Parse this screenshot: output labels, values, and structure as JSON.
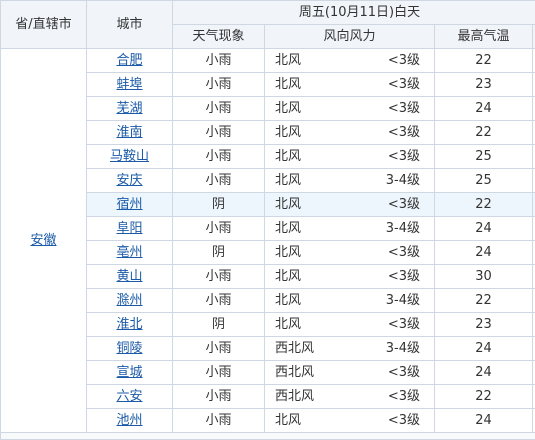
{
  "header": {
    "province_col": "省/直辖市",
    "city_col": "城市",
    "day_title": "周五(10月11日)白天",
    "weather_col": "天气现象",
    "wind_col": "风向风力",
    "temp_col": "最高气温"
  },
  "province": "安徽",
  "rows": [
    {
      "city": "合肥",
      "weather": "小雨",
      "wind_dir": "北风",
      "wind_force": "<3级",
      "temp": "22"
    },
    {
      "city": "蚌埠",
      "weather": "小雨",
      "wind_dir": "北风",
      "wind_force": "<3级",
      "temp": "23"
    },
    {
      "city": "芜湖",
      "weather": "小雨",
      "wind_dir": "北风",
      "wind_force": "<3级",
      "temp": "24"
    },
    {
      "city": "淮南",
      "weather": "小雨",
      "wind_dir": "北风",
      "wind_force": "<3级",
      "temp": "22"
    },
    {
      "city": "马鞍山",
      "weather": "小雨",
      "wind_dir": "北风",
      "wind_force": "<3级",
      "temp": "25"
    },
    {
      "city": "安庆",
      "weather": "小雨",
      "wind_dir": "北风",
      "wind_force": "3-4级",
      "temp": "25"
    },
    {
      "city": "宿州",
      "weather": "阴",
      "wind_dir": "北风",
      "wind_force": "<3级",
      "temp": "22"
    },
    {
      "city": "阜阳",
      "weather": "小雨",
      "wind_dir": "北风",
      "wind_force": "3-4级",
      "temp": "24"
    },
    {
      "city": "亳州",
      "weather": "阴",
      "wind_dir": "北风",
      "wind_force": "<3级",
      "temp": "24"
    },
    {
      "city": "黄山",
      "weather": "小雨",
      "wind_dir": "北风",
      "wind_force": "<3级",
      "temp": "30"
    },
    {
      "city": "滁州",
      "weather": "小雨",
      "wind_dir": "北风",
      "wind_force": "3-4级",
      "temp": "22"
    },
    {
      "city": "淮北",
      "weather": "阴",
      "wind_dir": "北风",
      "wind_force": "<3级",
      "temp": "23"
    },
    {
      "city": "铜陵",
      "weather": "小雨",
      "wind_dir": "西北风",
      "wind_force": "3-4级",
      "temp": "24"
    },
    {
      "city": "宣城",
      "weather": "小雨",
      "wind_dir": "西北风",
      "wind_force": "<3级",
      "temp": "24"
    },
    {
      "city": "六安",
      "weather": "小雨",
      "wind_dir": "西北风",
      "wind_force": "<3级",
      "temp": "22"
    },
    {
      "city": "池州",
      "weather": "小雨",
      "wind_dir": "北风",
      "wind_force": "<3级",
      "temp": "24"
    }
  ],
  "colors": {
    "link": "#1a5aa8",
    "header_bg": "#f1f5fa",
    "highlight_row": "#eef6fd",
    "border": "#cfd8e2"
  }
}
